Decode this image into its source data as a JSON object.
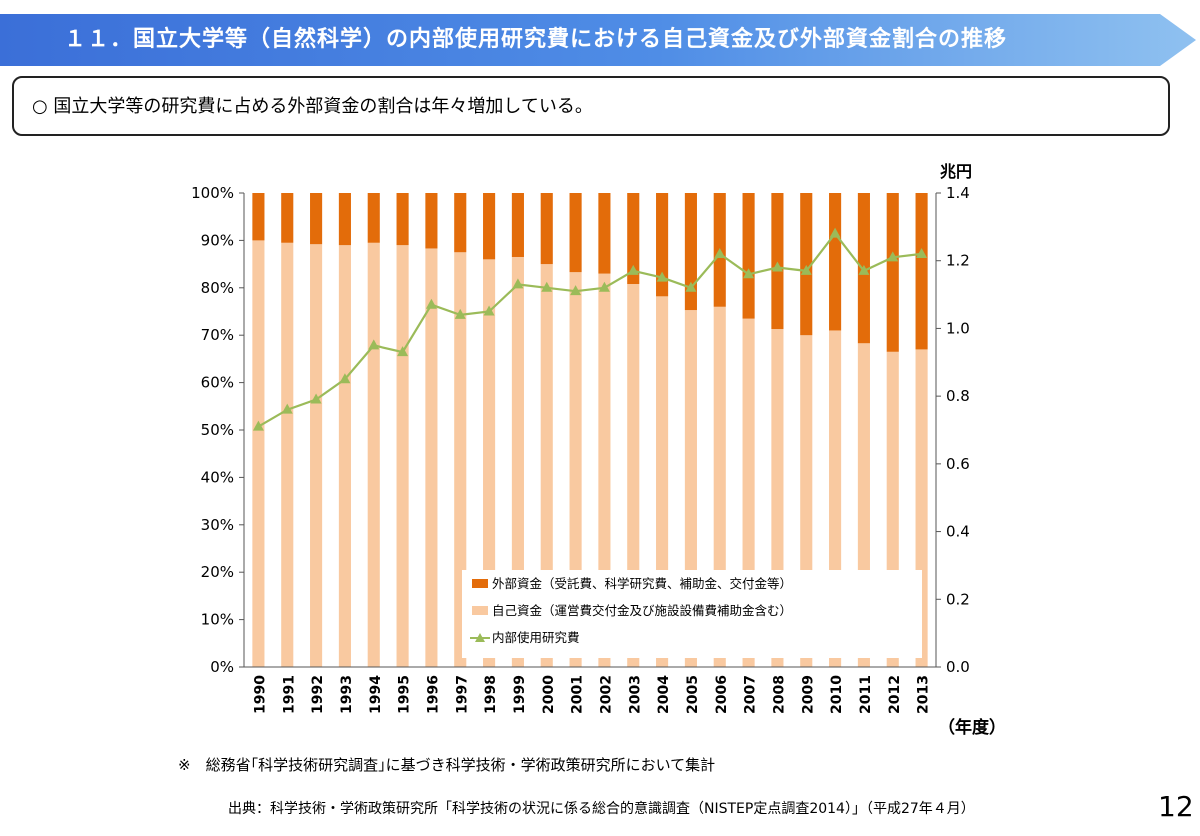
{
  "header": {
    "title": "１１．国立大学等（自然科学）の内部使用研究費における自己資金及び外部資金割合の推移"
  },
  "summary": {
    "text": "○ 国立大学等の研究費に占める外部資金の割合は年々増加している。"
  },
  "chart_data": {
    "type": "bar",
    "stacked": true,
    "categories": [
      "1990",
      "1991",
      "1992",
      "1993",
      "1994",
      "1995",
      "1996",
      "1997",
      "1998",
      "1999",
      "2000",
      "2001",
      "2002",
      "2003",
      "2004",
      "2005",
      "2006",
      "2007",
      "2008",
      "2009",
      "2010",
      "2011",
      "2012",
      "2013"
    ],
    "series": [
      {
        "name": "自己資金（運営費交付金及び施設設備費補助金含む）",
        "color": "#f9c9a0",
        "axis": "left",
        "values": [
          90,
          89.5,
          89.2,
          89,
          89.5,
          89,
          88.3,
          87.5,
          86,
          86.5,
          85,
          83.3,
          83,
          80.8,
          78.2,
          75.3,
          76,
          73.5,
          71.3,
          70,
          71,
          68.3,
          66.5,
          67
        ]
      },
      {
        "name": "外部資金（受託費、科学研究費、補助金、交付金等）",
        "color": "#e36c0a",
        "axis": "left",
        "values": [
          10,
          10.5,
          10.8,
          11,
          10.5,
          11,
          11.7,
          12.5,
          14,
          13.5,
          15,
          16.7,
          17,
          19.2,
          21.8,
          24.7,
          24,
          26.5,
          28.7,
          30,
          29,
          31.7,
          33.5,
          33
        ]
      },
      {
        "name": "内部使用研究費",
        "type": "line",
        "color": "#9bbb59",
        "axis": "right",
        "values": [
          0.71,
          0.76,
          0.79,
          0.85,
          0.95,
          0.93,
          1.07,
          1.04,
          1.05,
          1.13,
          1.12,
          1.11,
          1.12,
          1.17,
          1.15,
          1.12,
          1.22,
          1.16,
          1.18,
          1.17,
          1.28,
          1.17,
          1.21,
          1.22
        ]
      }
    ],
    "legend": [
      "外部資金（受託費、科学研究費、補助金、交付金等）",
      "自己資金（運営費交付金及び施設設備費補助金含む）",
      "内部使用研究費"
    ],
    "legend_position": "lower-right",
    "ylim": [
      0,
      100
    ],
    "y_ticks": [
      "0%",
      "10%",
      "20%",
      "30%",
      "40%",
      "50%",
      "60%",
      "70%",
      "80%",
      "90%",
      "100%"
    ],
    "y2lim": [
      0,
      1.4
    ],
    "y2_ticks": [
      "0.0",
      "0.2",
      "0.4",
      "0.6",
      "0.8",
      "1.0",
      "1.2",
      "1.4"
    ],
    "y2label": "兆円",
    "xlabel": "（年度）",
    "grid": false
  },
  "footer": {
    "note": "※　総務省｢科学技術研究調査｣に基づき科学技術・学術政策研究所において集計",
    "source": "出典：科学技術・学術政策研究所「科学技術の状況に係る総合的意識調査（NISTEP定点調査2014）」（平成27年４月）",
    "page_number": "12"
  }
}
